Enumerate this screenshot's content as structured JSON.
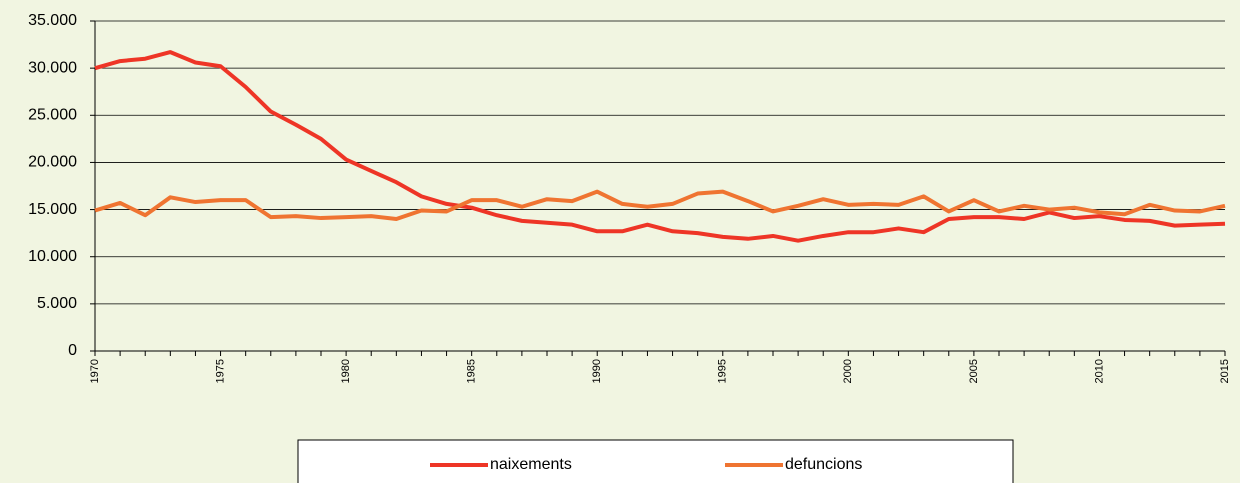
{
  "chart_data": {
    "type": "line",
    "x": [
      1970,
      1971,
      1972,
      1973,
      1974,
      1975,
      1976,
      1977,
      1978,
      1979,
      1980,
      1981,
      1982,
      1983,
      1984,
      1985,
      1986,
      1987,
      1988,
      1989,
      1990,
      1991,
      1992,
      1993,
      1994,
      1995,
      1996,
      1997,
      1998,
      1999,
      2000,
      2001,
      2002,
      2003,
      2004,
      2005,
      2006,
      2007,
      2008,
      2009,
      2010,
      2011,
      2012,
      2013,
      2014,
      2015
    ],
    "series": [
      {
        "name": "naixements",
        "color": "#ee3526",
        "values": [
          30000,
          30750,
          31000,
          31700,
          30600,
          30200,
          28000,
          25400,
          24000,
          22500,
          20300,
          19100,
          17900,
          16400,
          15600,
          15200,
          14400,
          13800,
          13600,
          13400,
          12700,
          12700,
          13400,
          12700,
          12500,
          12100,
          11900,
          12200,
          11700,
          12200,
          12600,
          12600,
          13000,
          12600,
          14000,
          14200,
          14200,
          14000,
          14700,
          14100,
          14300,
          13900,
          13800,
          13300,
          13400,
          13500
        ]
      },
      {
        "name": "defuncions",
        "color": "#ef7431",
        "values": [
          14900,
          15700,
          14400,
          16300,
          15800,
          16000,
          16000,
          14200,
          14300,
          14100,
          14200,
          14300,
          14000,
          14900,
          14800,
          16000,
          16000,
          15300,
          16100,
          15900,
          16900,
          15600,
          15300,
          15600,
          16700,
          16900,
          15900,
          14800,
          15400,
          16100,
          15500,
          15600,
          15500,
          16400,
          14800,
          16000,
          14800,
          15400,
          15000,
          15200,
          14700,
          14500,
          15500,
          14900,
          14800,
          15400
        ]
      }
    ],
    "xlim": [
      1970,
      2015
    ],
    "xticks": [
      1970,
      1975,
      1980,
      1985,
      1990,
      1995,
      2000,
      2005,
      2010,
      2015
    ],
    "ylim": [
      0,
      35000
    ],
    "yticks": [
      0,
      {
        "value": 5000,
        "label": "5.000"
      },
      {
        "value": 10000,
        "label": "10.000"
      },
      {
        "value": 15000,
        "label": "15.000"
      },
      {
        "value": 20000,
        "label": "20.000"
      },
      {
        "value": 25000,
        "label": "25.000"
      },
      {
        "value": 30000,
        "label": "30.000"
      },
      {
        "value": 35000,
        "label": "35.000"
      }
    ],
    "grid": true,
    "legend": "bottom"
  }
}
